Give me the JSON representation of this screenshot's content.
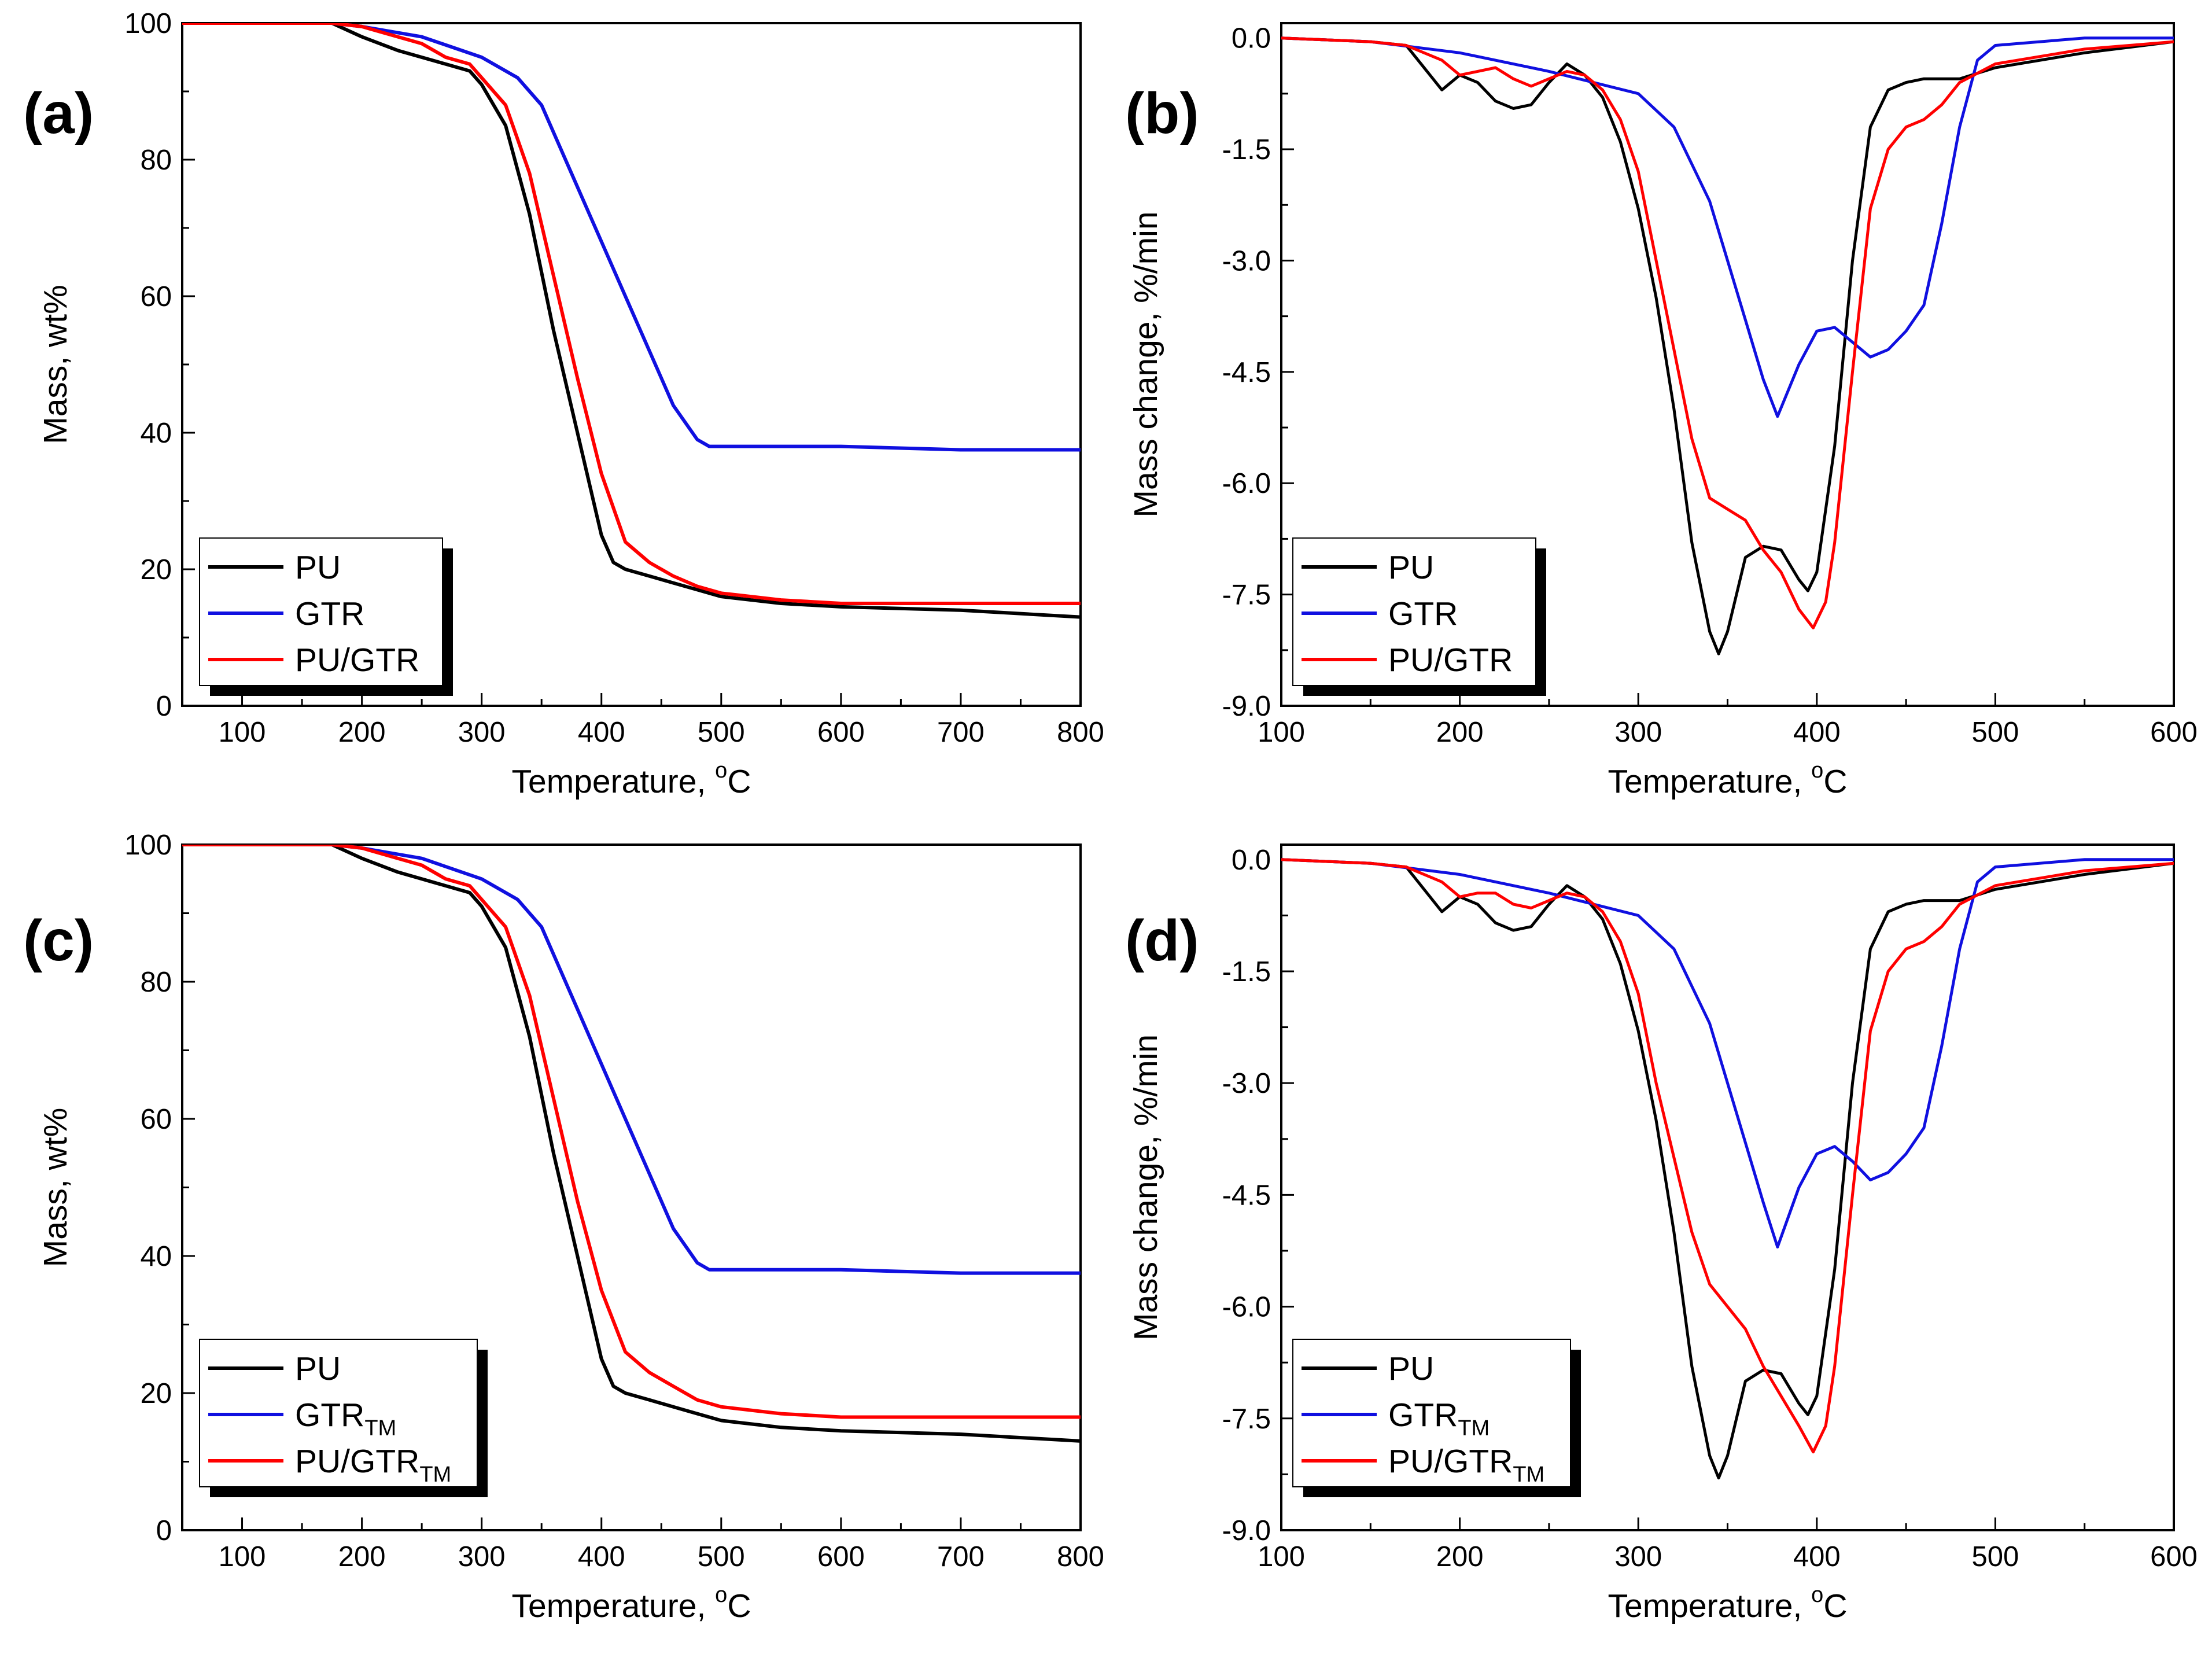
{
  "figure": {
    "panels": [
      {
        "label": "(a)",
        "xlabel": "Temperature, ",
        "xunit": "oC",
        "ylabel": "Mass, wt%",
        "xlim": [
          50,
          800
        ],
        "ylim": [
          0,
          100
        ],
        "xticks": [
          "100",
          "200",
          "300",
          "400",
          "500",
          "600",
          "700",
          "800"
        ],
        "yticks": [
          "0",
          "20",
          "40",
          "60",
          "80",
          "100"
        ],
        "legend": [
          "PU",
          "GTR",
          "PU/GTR"
        ]
      },
      {
        "label": "(b)",
        "xlabel": "Temperature, ",
        "xunit": "oC",
        "ylabel": "Mass change, %/min",
        "xlim": [
          100,
          600
        ],
        "ylim": [
          -9.0,
          0.2
        ],
        "xticks": [
          "100",
          "200",
          "300",
          "400",
          "500",
          "600"
        ],
        "yticks": [
          "0.0",
          "-1.5",
          "-3.0",
          "-4.5",
          "-6.0",
          "-7.5",
          "-9.0"
        ],
        "legend": [
          "PU",
          "GTR",
          "PU/GTR"
        ]
      },
      {
        "label": "(c)",
        "xlabel": "Temperature, ",
        "xunit": "oC",
        "ylabel": "Mass, wt%",
        "xlim": [
          50,
          800
        ],
        "ylim": [
          0,
          100
        ],
        "xticks": [
          "100",
          "200",
          "300",
          "400",
          "500",
          "600",
          "700",
          "800"
        ],
        "yticks": [
          "0",
          "20",
          "40",
          "60",
          "80",
          "100"
        ],
        "legend": [
          "PU",
          "GTR",
          "PU/GTR"
        ],
        "legend_sub": [
          "",
          "TM",
          "TM"
        ]
      },
      {
        "label": "(d)",
        "xlabel": "Temperature, ",
        "xunit": "oC",
        "ylabel": "Mass change, %/min",
        "xlim": [
          100,
          600
        ],
        "ylim": [
          -9.0,
          0.2
        ],
        "xticks": [
          "100",
          "200",
          "300",
          "400",
          "500",
          "600"
        ],
        "yticks": [
          "0.0",
          "-1.5",
          "-3.0",
          "-4.5",
          "-6.0",
          "-7.5",
          "-9.0"
        ],
        "legend": [
          "PU",
          "GTR",
          "PU/GTR"
        ],
        "legend_sub": [
          "",
          "TM",
          "TM"
        ]
      }
    ]
  },
  "colors": {
    "PU": "#000000",
    "GTR": "#1010e0",
    "PU/GTR": "#ff0000"
  },
  "chart_data": [
    {
      "type": "line",
      "panel": "(a)",
      "xlabel": "Temperature, oC",
      "ylabel": "Mass, wt%",
      "xlim": [
        50,
        800
      ],
      "ylim": [
        0,
        100
      ],
      "series": [
        {
          "name": "PU",
          "x": [
            50,
            100,
            175,
            200,
            230,
            250,
            270,
            290,
            300,
            320,
            340,
            360,
            380,
            400,
            410,
            420,
            440,
            460,
            480,
            500,
            550,
            600,
            700,
            800
          ],
          "y": [
            100,
            100,
            100,
            98,
            96,
            95,
            94,
            93,
            91,
            85,
            72,
            55,
            40,
            25,
            21,
            20,
            19,
            18,
            17,
            16,
            15,
            14.5,
            14,
            13
          ]
        },
        {
          "name": "GTR",
          "x": [
            50,
            100,
            175,
            200,
            250,
            300,
            330,
            350,
            370,
            390,
            400,
            420,
            440,
            460,
            480,
            490,
            500,
            600,
            700,
            800
          ],
          "y": [
            100,
            100,
            100,
            99.5,
            98,
            95,
            92,
            88,
            80,
            72,
            68,
            60,
            52,
            44,
            39,
            38,
            38,
            38,
            37.5,
            37.5
          ]
        },
        {
          "name": "PU/GTR",
          "x": [
            50,
            100,
            175,
            200,
            230,
            250,
            270,
            290,
            300,
            320,
            340,
            360,
            380,
            400,
            420,
            440,
            460,
            480,
            500,
            550,
            600,
            700,
            800
          ],
          "y": [
            100,
            100,
            100,
            99.5,
            98,
            97,
            95,
            94,
            92,
            88,
            78,
            63,
            48,
            34,
            24,
            21,
            19,
            17.5,
            16.5,
            15.5,
            15,
            15,
            15
          ]
        }
      ]
    },
    {
      "type": "line",
      "panel": "(b)",
      "xlabel": "Temperature, oC",
      "ylabel": "Mass change, %/min",
      "xlim": [
        100,
        600
      ],
      "ylim": [
        -9.0,
        0.2
      ],
      "series": [
        {
          "name": "PU",
          "x": [
            100,
            150,
            170,
            180,
            190,
            200,
            210,
            220,
            230,
            240,
            250,
            260,
            270,
            280,
            290,
            300,
            310,
            320,
            330,
            340,
            345,
            350,
            360,
            370,
            380,
            390,
            395,
            400,
            410,
            420,
            430,
            440,
            450,
            460,
            470,
            480,
            500,
            550,
            600
          ],
          "y": [
            0,
            -0.05,
            -0.1,
            -0.4,
            -0.7,
            -0.5,
            -0.6,
            -0.85,
            -0.95,
            -0.9,
            -0.6,
            -0.35,
            -0.5,
            -0.8,
            -1.4,
            -2.3,
            -3.5,
            -5.0,
            -6.8,
            -8.0,
            -8.3,
            -8.0,
            -7.0,
            -6.85,
            -6.9,
            -7.3,
            -7.45,
            -7.2,
            -5.5,
            -3.0,
            -1.2,
            -0.7,
            -0.6,
            -0.55,
            -0.55,
            -0.55,
            -0.4,
            -0.2,
            -0.05
          ]
        },
        {
          "name": "GTR",
          "x": [
            100,
            150,
            200,
            250,
            300,
            320,
            340,
            350,
            360,
            370,
            378,
            390,
            400,
            410,
            420,
            430,
            440,
            450,
            460,
            470,
            480,
            490,
            500,
            550,
            600
          ],
          "y": [
            0,
            -0.05,
            -0.2,
            -0.45,
            -0.75,
            -1.2,
            -2.2,
            -3.0,
            -3.8,
            -4.6,
            -5.1,
            -4.4,
            -3.95,
            -3.9,
            -4.1,
            -4.3,
            -4.2,
            -3.95,
            -3.6,
            -2.5,
            -1.2,
            -0.3,
            -0.1,
            0,
            0
          ]
        },
        {
          "name": "PU/GTR",
          "x": [
            100,
            150,
            170,
            190,
            200,
            210,
            220,
            230,
            240,
            250,
            260,
            270,
            280,
            290,
            300,
            310,
            320,
            330,
            340,
            350,
            360,
            370,
            380,
            390,
            398,
            405,
            410,
            420,
            430,
            440,
            450,
            460,
            470,
            480,
            500,
            550,
            600
          ],
          "y": [
            0,
            -0.05,
            -0.1,
            -0.3,
            -0.5,
            -0.45,
            -0.4,
            -0.55,
            -0.65,
            -0.55,
            -0.45,
            -0.5,
            -0.7,
            -1.1,
            -1.8,
            -3.0,
            -4.2,
            -5.4,
            -6.2,
            -6.35,
            -6.5,
            -6.9,
            -7.2,
            -7.7,
            -7.95,
            -7.6,
            -6.8,
            -4.5,
            -2.3,
            -1.5,
            -1.2,
            -1.1,
            -0.9,
            -0.6,
            -0.35,
            -0.15,
            -0.05
          ]
        }
      ]
    },
    {
      "type": "line",
      "panel": "(c)",
      "xlabel": "Temperature, oC",
      "ylabel": "Mass, wt%",
      "xlim": [
        50,
        800
      ],
      "ylim": [
        0,
        100
      ],
      "series": [
        {
          "name": "PU",
          "x": [
            50,
            100,
            175,
            200,
            230,
            250,
            270,
            290,
            300,
            320,
            340,
            360,
            380,
            400,
            410,
            420,
            440,
            460,
            480,
            500,
            550,
            600,
            700,
            800
          ],
          "y": [
            100,
            100,
            100,
            98,
            96,
            95,
            94,
            93,
            91,
            85,
            72,
            55,
            40,
            25,
            21,
            20,
            19,
            18,
            17,
            16,
            15,
            14.5,
            14,
            13
          ]
        },
        {
          "name": "GTR",
          "x": [
            50,
            100,
            175,
            200,
            250,
            300,
            330,
            350,
            370,
            390,
            400,
            420,
            440,
            460,
            480,
            490,
            500,
            600,
            700,
            800
          ],
          "y": [
            100,
            100,
            100,
            99.5,
            98,
            95,
            92,
            88,
            80,
            72,
            68,
            60,
            52,
            44,
            39,
            38,
            38,
            38,
            37.5,
            37.5
          ]
        },
        {
          "name": "PU/GTR",
          "x": [
            50,
            100,
            175,
            200,
            230,
            250,
            270,
            290,
            300,
            320,
            340,
            360,
            380,
            400,
            420,
            440,
            460,
            480,
            500,
            550,
            600,
            700,
            800
          ],
          "y": [
            100,
            100,
            100,
            99.5,
            98,
            97,
            95,
            94,
            92,
            88,
            78,
            63,
            48,
            35,
            26,
            23,
            21,
            19,
            18,
            17,
            16.5,
            16.5,
            16.5
          ]
        }
      ]
    },
    {
      "type": "line",
      "panel": "(d)",
      "xlabel": "Temperature, oC",
      "ylabel": "Mass change, %/min",
      "xlim": [
        100,
        600
      ],
      "ylim": [
        -9.0,
        0.2
      ],
      "series": [
        {
          "name": "PU",
          "x": [
            100,
            150,
            170,
            180,
            190,
            200,
            210,
            220,
            230,
            240,
            250,
            260,
            270,
            280,
            290,
            300,
            310,
            320,
            330,
            340,
            345,
            350,
            360,
            370,
            380,
            390,
            395,
            400,
            410,
            420,
            430,
            440,
            450,
            460,
            470,
            480,
            500,
            550,
            600
          ],
          "y": [
            0,
            -0.05,
            -0.1,
            -0.4,
            -0.7,
            -0.5,
            -0.6,
            -0.85,
            -0.95,
            -0.9,
            -0.6,
            -0.35,
            -0.5,
            -0.8,
            -1.4,
            -2.3,
            -3.5,
            -5.0,
            -6.8,
            -8.0,
            -8.3,
            -8.0,
            -7.0,
            -6.85,
            -6.9,
            -7.3,
            -7.45,
            -7.2,
            -5.5,
            -3.0,
            -1.2,
            -0.7,
            -0.6,
            -0.55,
            -0.55,
            -0.55,
            -0.4,
            -0.2,
            -0.05
          ]
        },
        {
          "name": "GTR",
          "x": [
            100,
            150,
            200,
            250,
            300,
            320,
            340,
            350,
            360,
            370,
            378,
            390,
            400,
            410,
            420,
            430,
            440,
            450,
            460,
            470,
            480,
            490,
            500,
            550,
            600
          ],
          "y": [
            0,
            -0.05,
            -0.2,
            -0.45,
            -0.75,
            -1.2,
            -2.2,
            -3.0,
            -3.8,
            -4.6,
            -5.2,
            -4.4,
            -3.95,
            -3.85,
            -4.05,
            -4.3,
            -4.2,
            -3.95,
            -3.6,
            -2.5,
            -1.2,
            -0.3,
            -0.1,
            0,
            0
          ]
        },
        {
          "name": "PU/GTR",
          "x": [
            100,
            150,
            170,
            190,
            200,
            210,
            220,
            230,
            240,
            250,
            260,
            270,
            280,
            290,
            300,
            310,
            320,
            330,
            340,
            350,
            360,
            370,
            380,
            390,
            398,
            405,
            410,
            420,
            430,
            440,
            450,
            460,
            470,
            480,
            500,
            550,
            600
          ],
          "y": [
            0,
            -0.05,
            -0.1,
            -0.3,
            -0.5,
            -0.45,
            -0.45,
            -0.6,
            -0.65,
            -0.55,
            -0.45,
            -0.5,
            -0.7,
            -1.1,
            -1.8,
            -3.0,
            -4.0,
            -5.0,
            -5.7,
            -6.0,
            -6.3,
            -6.8,
            -7.2,
            -7.6,
            -7.95,
            -7.6,
            -6.8,
            -4.5,
            -2.3,
            -1.5,
            -1.2,
            -1.1,
            -0.9,
            -0.6,
            -0.35,
            -0.15,
            -0.05
          ]
        }
      ]
    }
  ]
}
